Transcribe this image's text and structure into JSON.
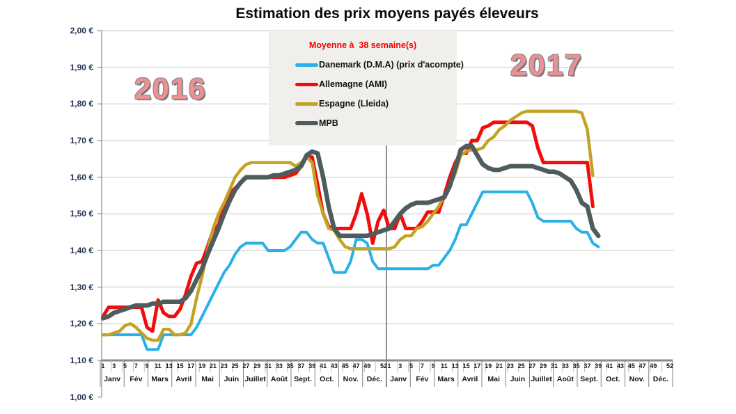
{
  "title": "Estimation des prix moyens payés éleveurs",
  "year_left": "2016",
  "year_right": "2017",
  "legend": {
    "title": "Moyenne à  38 semaine(s)",
    "entries": [
      {
        "label": "Danemark (D.M.A) (prix d'acompte)",
        "color": "#2ab0e8"
      },
      {
        "label": "Allemagne (AMI)",
        "color": "#f20d0d"
      },
      {
        "label": "Espagne (Lleida)",
        "color": "#c4a324"
      },
      {
        "label": "MPB",
        "color": "#4e5c5e"
      }
    ]
  },
  "colors": {
    "grid": "#c6c6c6",
    "axis": "#898989",
    "separator": "#808080",
    "tick": "#bdbdbd",
    "legend_bg": "#f1efec"
  },
  "chart_data": {
    "type": "line",
    "title": "Estimation des prix moyens payés éleveurs",
    "ylabel": "",
    "xlabel": "",
    "ylim": [
      1.0,
      2.0
    ],
    "grid": true,
    "legend_position": "top-center",
    "y_axis": {
      "tick_labels": [
        "2,00 €",
        "1,90 €",
        "1,80 €",
        "1,70 €",
        "1,60 €",
        "1,50 €",
        "1,40 €",
        "1,30 €",
        "1,20 €",
        "1,10 €",
        "1,00 €"
      ],
      "tick_values": [
        2.0,
        1.9,
        1.8,
        1.7,
        1.6,
        1.5,
        1.4,
        1.3,
        1.2,
        1.1,
        1.0
      ]
    },
    "x_axis": {
      "years": [
        "2016",
        "2017"
      ],
      "weeks_per_year": 52,
      "week_tick_labels": [
        "1",
        "3",
        "5",
        "7",
        "9",
        "11",
        "13",
        "15",
        "17",
        "19",
        "21",
        "23",
        "25",
        "27",
        "29",
        "31",
        "33",
        "35",
        "37",
        "39",
        "41",
        "43",
        "45",
        "47",
        "49",
        "52"
      ],
      "month_labels": [
        "Janv",
        "Fév",
        "Mars",
        "Avril",
        "Mai",
        "Juin",
        "Juillet",
        "Août",
        "Sept.",
        "Oct.",
        "Nov.",
        "Déc."
      ]
    },
    "series": [
      {
        "name": "Danemark (D.M.A) (prix d'acompte)",
        "color": "#2ab0e8",
        "stroke_width": 4,
        "values": [
          1.17,
          1.17,
          1.17,
          1.17,
          1.17,
          1.17,
          1.17,
          1.17,
          1.13,
          1.13,
          1.13,
          1.17,
          1.17,
          1.17,
          1.17,
          1.17,
          1.17,
          1.19,
          1.22,
          1.25,
          1.28,
          1.31,
          1.34,
          1.36,
          1.39,
          1.41,
          1.42,
          1.42,
          1.42,
          1.42,
          1.4,
          1.4,
          1.4,
          1.4,
          1.41,
          1.43,
          1.45,
          1.45,
          1.43,
          1.42,
          1.42,
          1.38,
          1.34,
          1.34,
          1.34,
          1.37,
          1.43,
          1.43,
          1.42,
          1.37,
          1.35,
          1.35,
          1.35,
          1.35,
          1.35,
          1.35,
          1.35,
          1.35,
          1.35,
          1.35,
          1.36,
          1.36,
          1.38,
          1.4,
          1.43,
          1.47,
          1.47,
          1.5,
          1.53,
          1.56,
          1.56,
          1.56,
          1.56,
          1.56,
          1.56,
          1.56,
          1.56,
          1.56,
          1.53,
          1.49,
          1.48,
          1.48,
          1.48,
          1.48,
          1.48,
          1.48,
          1.46,
          1.45,
          1.45,
          1.42,
          1.41,
          null,
          null,
          null,
          null,
          null,
          null,
          null,
          null,
          null,
          null,
          null,
          null,
          null
        ]
      },
      {
        "name": "Allemagne (AMI)",
        "color": "#f20d0d",
        "stroke_width": 5,
        "values": [
          1.22,
          1.245,
          1.245,
          1.245,
          1.245,
          1.245,
          1.245,
          1.245,
          1.19,
          1.18,
          1.265,
          1.23,
          1.22,
          1.22,
          1.24,
          1.28,
          1.33,
          1.365,
          1.37,
          1.41,
          1.455,
          1.47,
          1.52,
          1.555,
          1.57,
          1.585,
          1.6,
          1.6,
          1.6,
          1.6,
          1.6,
          1.6,
          1.6,
          1.6,
          1.605,
          1.61,
          1.63,
          1.655,
          1.655,
          1.58,
          1.5,
          1.465,
          1.46,
          1.46,
          1.46,
          1.46,
          1.5,
          1.555,
          1.5,
          1.42,
          1.48,
          1.51,
          1.46,
          1.46,
          1.5,
          1.46,
          1.46,
          1.46,
          1.48,
          1.505,
          1.505,
          1.505,
          1.55,
          1.6,
          1.64,
          1.665,
          1.665,
          1.7,
          1.7,
          1.735,
          1.74,
          1.75,
          1.75,
          1.75,
          1.75,
          1.75,
          1.75,
          1.75,
          1.74,
          1.68,
          1.64,
          1.64,
          1.64,
          1.64,
          1.64,
          1.64,
          1.64,
          1.64,
          1.64,
          1.52,
          null,
          null,
          null,
          null,
          null,
          null,
          null,
          null,
          null,
          null,
          null,
          null,
          null,
          null
        ]
      },
      {
        "name": "Espagne (Lleida)",
        "color": "#c4a324",
        "stroke_width": 4.5,
        "values": [
          1.17,
          1.17,
          1.175,
          1.18,
          1.195,
          1.2,
          1.19,
          1.175,
          1.16,
          1.155,
          1.155,
          1.185,
          1.185,
          1.17,
          1.17,
          1.175,
          1.2,
          1.27,
          1.33,
          1.4,
          1.46,
          1.5,
          1.53,
          1.565,
          1.6,
          1.62,
          1.635,
          1.64,
          1.64,
          1.64,
          1.64,
          1.64,
          1.64,
          1.64,
          1.64,
          1.63,
          1.64,
          1.655,
          1.64,
          1.55,
          1.5,
          1.46,
          1.455,
          1.43,
          1.41,
          1.405,
          1.405,
          1.405,
          1.405,
          1.405,
          1.405,
          1.405,
          1.405,
          1.41,
          1.43,
          1.44,
          1.44,
          1.46,
          1.465,
          1.48,
          1.5,
          1.52,
          1.55,
          1.575,
          1.61,
          1.66,
          1.67,
          1.675,
          1.675,
          1.68,
          1.7,
          1.71,
          1.73,
          1.74,
          1.755,
          1.765,
          1.775,
          1.78,
          1.78,
          1.78,
          1.78,
          1.78,
          1.78,
          1.78,
          1.78,
          1.78,
          1.78,
          1.775,
          1.73,
          1.605,
          null,
          null,
          null,
          null,
          null,
          null,
          null,
          null,
          null,
          null,
          null,
          null,
          null,
          null
        ]
      },
      {
        "name": "MPB",
        "color": "#4e5c5e",
        "stroke_width": 6.5,
        "values": [
          1.215,
          1.22,
          1.23,
          1.235,
          1.24,
          1.245,
          1.25,
          1.25,
          1.25,
          1.255,
          1.255,
          1.26,
          1.26,
          1.26,
          1.26,
          1.27,
          1.29,
          1.32,
          1.35,
          1.39,
          1.425,
          1.46,
          1.5,
          1.535,
          1.565,
          1.585,
          1.6,
          1.6,
          1.6,
          1.6,
          1.6,
          1.605,
          1.605,
          1.61,
          1.615,
          1.62,
          1.63,
          1.66,
          1.67,
          1.665,
          1.6,
          1.52,
          1.46,
          1.44,
          1.44,
          1.44,
          1.44,
          1.44,
          1.44,
          1.445,
          1.45,
          1.455,
          1.46,
          1.48,
          1.5,
          1.515,
          1.525,
          1.53,
          1.53,
          1.53,
          1.535,
          1.54,
          1.545,
          1.575,
          1.625,
          1.675,
          1.685,
          1.685,
          1.66,
          1.635,
          1.625,
          1.62,
          1.62,
          1.625,
          1.63,
          1.63,
          1.63,
          1.63,
          1.63,
          1.625,
          1.62,
          1.615,
          1.615,
          1.61,
          1.6,
          1.59,
          1.565,
          1.53,
          1.52,
          1.46,
          1.44,
          null,
          null,
          null,
          null,
          null,
          null,
          null,
          null,
          null,
          null,
          null,
          null,
          null
        ]
      }
    ]
  }
}
